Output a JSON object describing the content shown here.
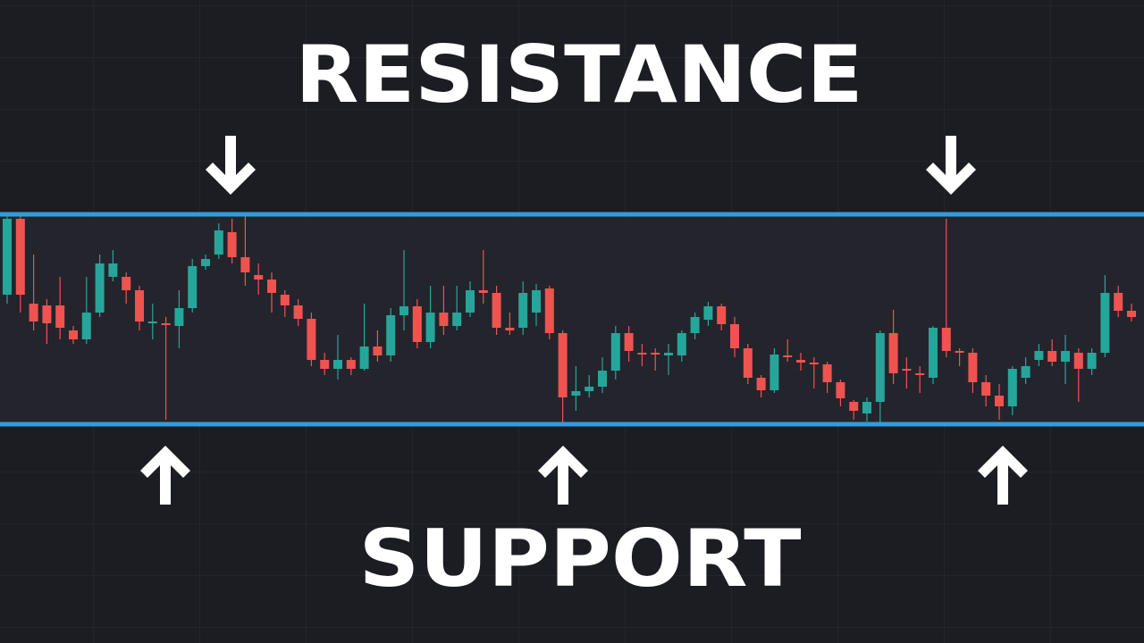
{
  "chart_data": {
    "type": "candlestick",
    "ylim": [
      0,
      240
    ],
    "up_color": "#26a69a",
    "down_color": "#ef5350",
    "level_color": "#2d9fdc",
    "open": [
      150,
      235,
      140,
      138,
      138,
      110,
      100,
      130,
      170,
      170,
      155,
      118,
      118,
      115,
      135,
      182,
      195,
      220,
      192,
      172,
      167,
      150,
      138,
      123,
      77,
      67,
      77,
      67,
      92,
      82,
      127,
      137,
      97,
      130,
      115,
      130,
      155,
      152,
      113,
      113,
      130,
      157,
      107,
      37,
      42,
      47,
      65,
      107,
      85,
      85,
      82,
      82,
      107,
      122,
      137,
      117,
      90,
      57,
      43,
      82,
      77,
      74,
      72,
      52,
      30,
      17,
      30,
      107,
      67,
      62,
      57,
      113,
      87,
      85,
      52,
      37,
      25,
      57,
      77,
      87,
      75,
      85,
      67,
      85,
      152,
      132
    ],
    "high": [
      238,
      238,
      195,
      145,
      170,
      115,
      170,
      195,
      200,
      175,
      160,
      140,
      125,
      155,
      190,
      195,
      230,
      235,
      238,
      185,
      175,
      155,
      145,
      130,
      85,
      105,
      80,
      140,
      110,
      135,
      200,
      145,
      160,
      160,
      160,
      165,
      200,
      160,
      130,
      165,
      162,
      160,
      110,
      70,
      60,
      80,
      115,
      115,
      95,
      90,
      95,
      110,
      130,
      142,
      140,
      125,
      95,
      60,
      90,
      100,
      85,
      80,
      75,
      55,
      32,
      35,
      110,
      133,
      80,
      70,
      115,
      235,
      90,
      90,
      60,
      50,
      70,
      80,
      95,
      100,
      105,
      90,
      90,
      172,
      160,
      140
    ],
    "low": [
      140,
      130,
      110,
      95,
      100,
      95,
      95,
      125,
      165,
      140,
      110,
      100,
      10,
      90,
      130,
      178,
      190,
      185,
      160,
      150,
      130,
      125,
      115,
      70,
      60,
      55,
      60,
      65,
      75,
      75,
      110,
      90,
      90,
      105,
      110,
      125,
      140,
      105,
      105,
      105,
      115,
      100,
      5,
      20,
      35,
      40,
      55,
      75,
      70,
      65,
      60,
      75,
      100,
      115,
      110,
      80,
      50,
      35,
      40,
      75,
      65,
      45,
      40,
      25,
      10,
      8,
      5,
      50,
      45,
      40,
      50,
      80,
      70,
      40,
      25,
      10,
      15,
      50,
      70,
      70,
      50,
      30,
      60,
      80,
      125,
      120
    ],
    "close": [
      235,
      150,
      120,
      118,
      113,
      100,
      130,
      185,
      185,
      155,
      120,
      120,
      116,
      135,
      182,
      190,
      222,
      192,
      175,
      167,
      152,
      138,
      123,
      77,
      67,
      77,
      67,
      92,
      82,
      127,
      137,
      97,
      130,
      115,
      130,
      155,
      152,
      113,
      110,
      152,
      155,
      107,
      35,
      42,
      47,
      65,
      107,
      87,
      83,
      83,
      85,
      107,
      125,
      137,
      117,
      90,
      57,
      43,
      83,
      80,
      74,
      72,
      52,
      34,
      20,
      30,
      107,
      62,
      65,
      60,
      113,
      87,
      85,
      52,
      37,
      25,
      67,
      70,
      87,
      75,
      87,
      67,
      85,
      152,
      132,
      125
    ],
    "levels": [
      {
        "name": "RESISTANCE",
        "value": 240
      },
      {
        "name": "SUPPORT",
        "value": 5
      }
    ]
  }
}
